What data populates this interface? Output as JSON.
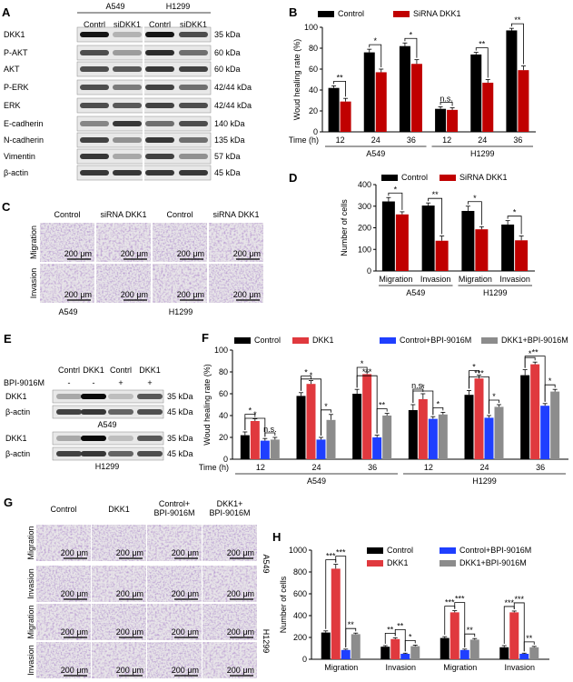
{
  "panels": {
    "A": {
      "label": "A",
      "groups": [
        "A549",
        "H1299"
      ],
      "lanes": [
        "Contrl",
        "siDKK1",
        "Contrl",
        "siDKK1"
      ],
      "proteins": [
        {
          "name": "DKK1",
          "kda": "35 kDa"
        },
        {
          "name": "P-AKT",
          "kda": "60 kDa"
        },
        {
          "name": "AKT",
          "kda": "60 kDa"
        },
        {
          "name": "P-ERK",
          "kda": "42/44 kDa"
        },
        {
          "name": "ERK",
          "kda": "42/44 kDa"
        },
        {
          "name": "E-cadherin",
          "kda": "140 kDa"
        },
        {
          "name": "N-cadherin",
          "kda": "135 kDa"
        },
        {
          "name": "Vimentin",
          "kda": "57 kDa"
        },
        {
          "name": "β-actin",
          "kda": "45 kDa"
        }
      ]
    },
    "C": {
      "label": "C",
      "cols": [
        "Control",
        "siRNA DKK1",
        "Control",
        "siRNA DKK1"
      ],
      "rows": [
        "Migration",
        "Invasion"
      ],
      "scale": "200 μm",
      "groups": [
        "A549",
        "H1299"
      ]
    },
    "E": {
      "label": "E",
      "lanes": [
        "Contrl",
        "DKK1",
        "Contrl",
        "DKK1"
      ],
      "treatment_label": "BPI-9016M",
      "treatment": [
        "-",
        "-",
        "+",
        "+"
      ],
      "blots": [
        {
          "cell": "A549",
          "rows": [
            {
              "name": "DKK1",
              "kda": "35 kDa"
            },
            {
              "name": "β-actin",
              "kda": "45 kDa"
            }
          ]
        },
        {
          "cell": "H1299",
          "rows": [
            {
              "name": "DKK1",
              "kda": "35 kDa"
            },
            {
              "name": "β-actin",
              "kda": "45 kDa"
            }
          ]
        }
      ]
    },
    "G": {
      "label": "G",
      "cols": [
        "Control",
        "DKK1",
        "Control+\nBPI-9016M",
        "DKK1+\nBPI-9016M"
      ],
      "rows": [
        "Migration",
        "Invasion",
        "Migration",
        "Invasion"
      ],
      "cells": [
        "A549",
        "H1299"
      ],
      "scale": "200 μm"
    }
  },
  "chart_data": [
    {
      "panel": "B",
      "type": "bar",
      "ylabel": "Woud healing rate (%)",
      "ylim": [
        0,
        100
      ],
      "yticks": [
        0,
        20,
        40,
        60,
        80,
        100
      ],
      "xlabel_prefix": "Time (h)",
      "categories": [
        "12",
        "24",
        "36",
        "12",
        "24",
        "36"
      ],
      "groups": [
        {
          "name": "A549",
          "span": [
            0,
            2
          ]
        },
        {
          "name": "H1299",
          "span": [
            3,
            5
          ]
        }
      ],
      "series": [
        {
          "name": "Control",
          "color": "#000000",
          "values": [
            42,
            76,
            82,
            22,
            74,
            97
          ],
          "err": [
            2,
            3,
            3,
            2,
            2,
            2
          ]
        },
        {
          "name": "SiRNA DKK1",
          "color": "#c00000",
          "values": [
            29,
            57,
            65,
            21,
            47,
            59
          ],
          "err": [
            3,
            3,
            4,
            2,
            3,
            4
          ]
        }
      ],
      "annotations": [
        "**",
        "*",
        "*",
        "n.s.",
        "**",
        "**"
      ]
    },
    {
      "panel": "D",
      "type": "bar",
      "ylabel": "Number of cells",
      "ylim": [
        0,
        400
      ],
      "yticks": [
        0,
        100,
        200,
        300,
        400
      ],
      "categories": [
        "Migration",
        "Invasion",
        "Migration",
        "Invasion"
      ],
      "groups": [
        {
          "name": "A549",
          "span": [
            0,
            1
          ]
        },
        {
          "name": "H1299",
          "span": [
            2,
            3
          ]
        }
      ],
      "series": [
        {
          "name": "Control",
          "color": "#000000",
          "values": [
            322,
            303,
            278,
            215
          ],
          "err": [
            18,
            12,
            22,
            18
          ]
        },
        {
          "name": "SiRNA DKK1",
          "color": "#c00000",
          "values": [
            262,
            140,
            193,
            142
          ],
          "err": [
            12,
            22,
            12,
            20
          ]
        }
      ],
      "annotations": [
        "*",
        "**",
        "*",
        "*"
      ]
    },
    {
      "panel": "F",
      "type": "bar",
      "ylabel": "Woud healing rate (%)",
      "ylim": [
        0,
        100
      ],
      "yticks": [
        0,
        20,
        40,
        60,
        80,
        100
      ],
      "xlabel_prefix": "Time (h)",
      "categories": [
        "12",
        "24",
        "36",
        "12",
        "24",
        "36"
      ],
      "groups": [
        {
          "name": "A549",
          "span": [
            0,
            2
          ]
        },
        {
          "name": "H1299",
          "span": [
            3,
            5
          ]
        }
      ],
      "series": [
        {
          "name": "Control",
          "color": "#000000",
          "values": [
            22,
            58,
            60,
            45,
            59,
            77
          ],
          "err": [
            3,
            3,
            4,
            5,
            4,
            5
          ]
        },
        {
          "name": "DKK1",
          "color": "#e0393e",
          "values": [
            35,
            69,
            78,
            55,
            74,
            87
          ],
          "err": [
            2,
            3,
            2,
            5,
            3,
            2
          ]
        },
        {
          "name": "Control+BPI-9016M",
          "color": "#1f3fff",
          "values": [
            17,
            18,
            20,
            37,
            38,
            49
          ],
          "err": [
            2,
            2,
            2,
            2,
            2,
            2
          ]
        },
        {
          "name": "DKK1+BPI-9016M",
          "color": "#8c8c8c",
          "values": [
            18,
            36,
            40,
            41,
            48,
            62
          ],
          "err": [
            2,
            5,
            2,
            2,
            2,
            2
          ]
        }
      ],
      "annotations": [
        "*",
        "*",
        "n.s.",
        "*",
        "*",
        "*",
        "*",
        "***",
        "**",
        "n.s.",
        "*",
        "*",
        "*",
        "***",
        "*",
        "*",
        "**",
        "*"
      ]
    },
    {
      "panel": "H",
      "type": "bar",
      "ylabel": "Number of cells",
      "ylim": [
        0,
        1000
      ],
      "yticks": [
        0,
        200,
        400,
        600,
        800,
        1000
      ],
      "categories": [
        "Migration",
        "Invasion",
        "Migration",
        "Invasion"
      ],
      "series": [
        {
          "name": "Control",
          "color": "#000000",
          "values": [
            245,
            115,
            195,
            110
          ],
          "err": [
            15,
            10,
            12,
            15
          ]
        },
        {
          "name": "DKK1",
          "color": "#e0393e",
          "values": [
            830,
            185,
            430,
            430
          ],
          "err": [
            40,
            12,
            15,
            12
          ]
        },
        {
          "name": "Control+BPI-9016M",
          "color": "#1f3fff",
          "values": [
            85,
            50,
            85,
            50
          ],
          "err": [
            8,
            6,
            8,
            6
          ]
        },
        {
          "name": "DKK1+BPI-9016M",
          "color": "#8c8c8c",
          "values": [
            230,
            120,
            180,
            110
          ],
          "err": [
            10,
            10,
            10,
            8
          ]
        }
      ],
      "annotations": [
        "***",
        "***",
        "**",
        "**",
        "**",
        "*",
        "***",
        "***",
        "**",
        "***",
        "***",
        "**"
      ]
    }
  ]
}
